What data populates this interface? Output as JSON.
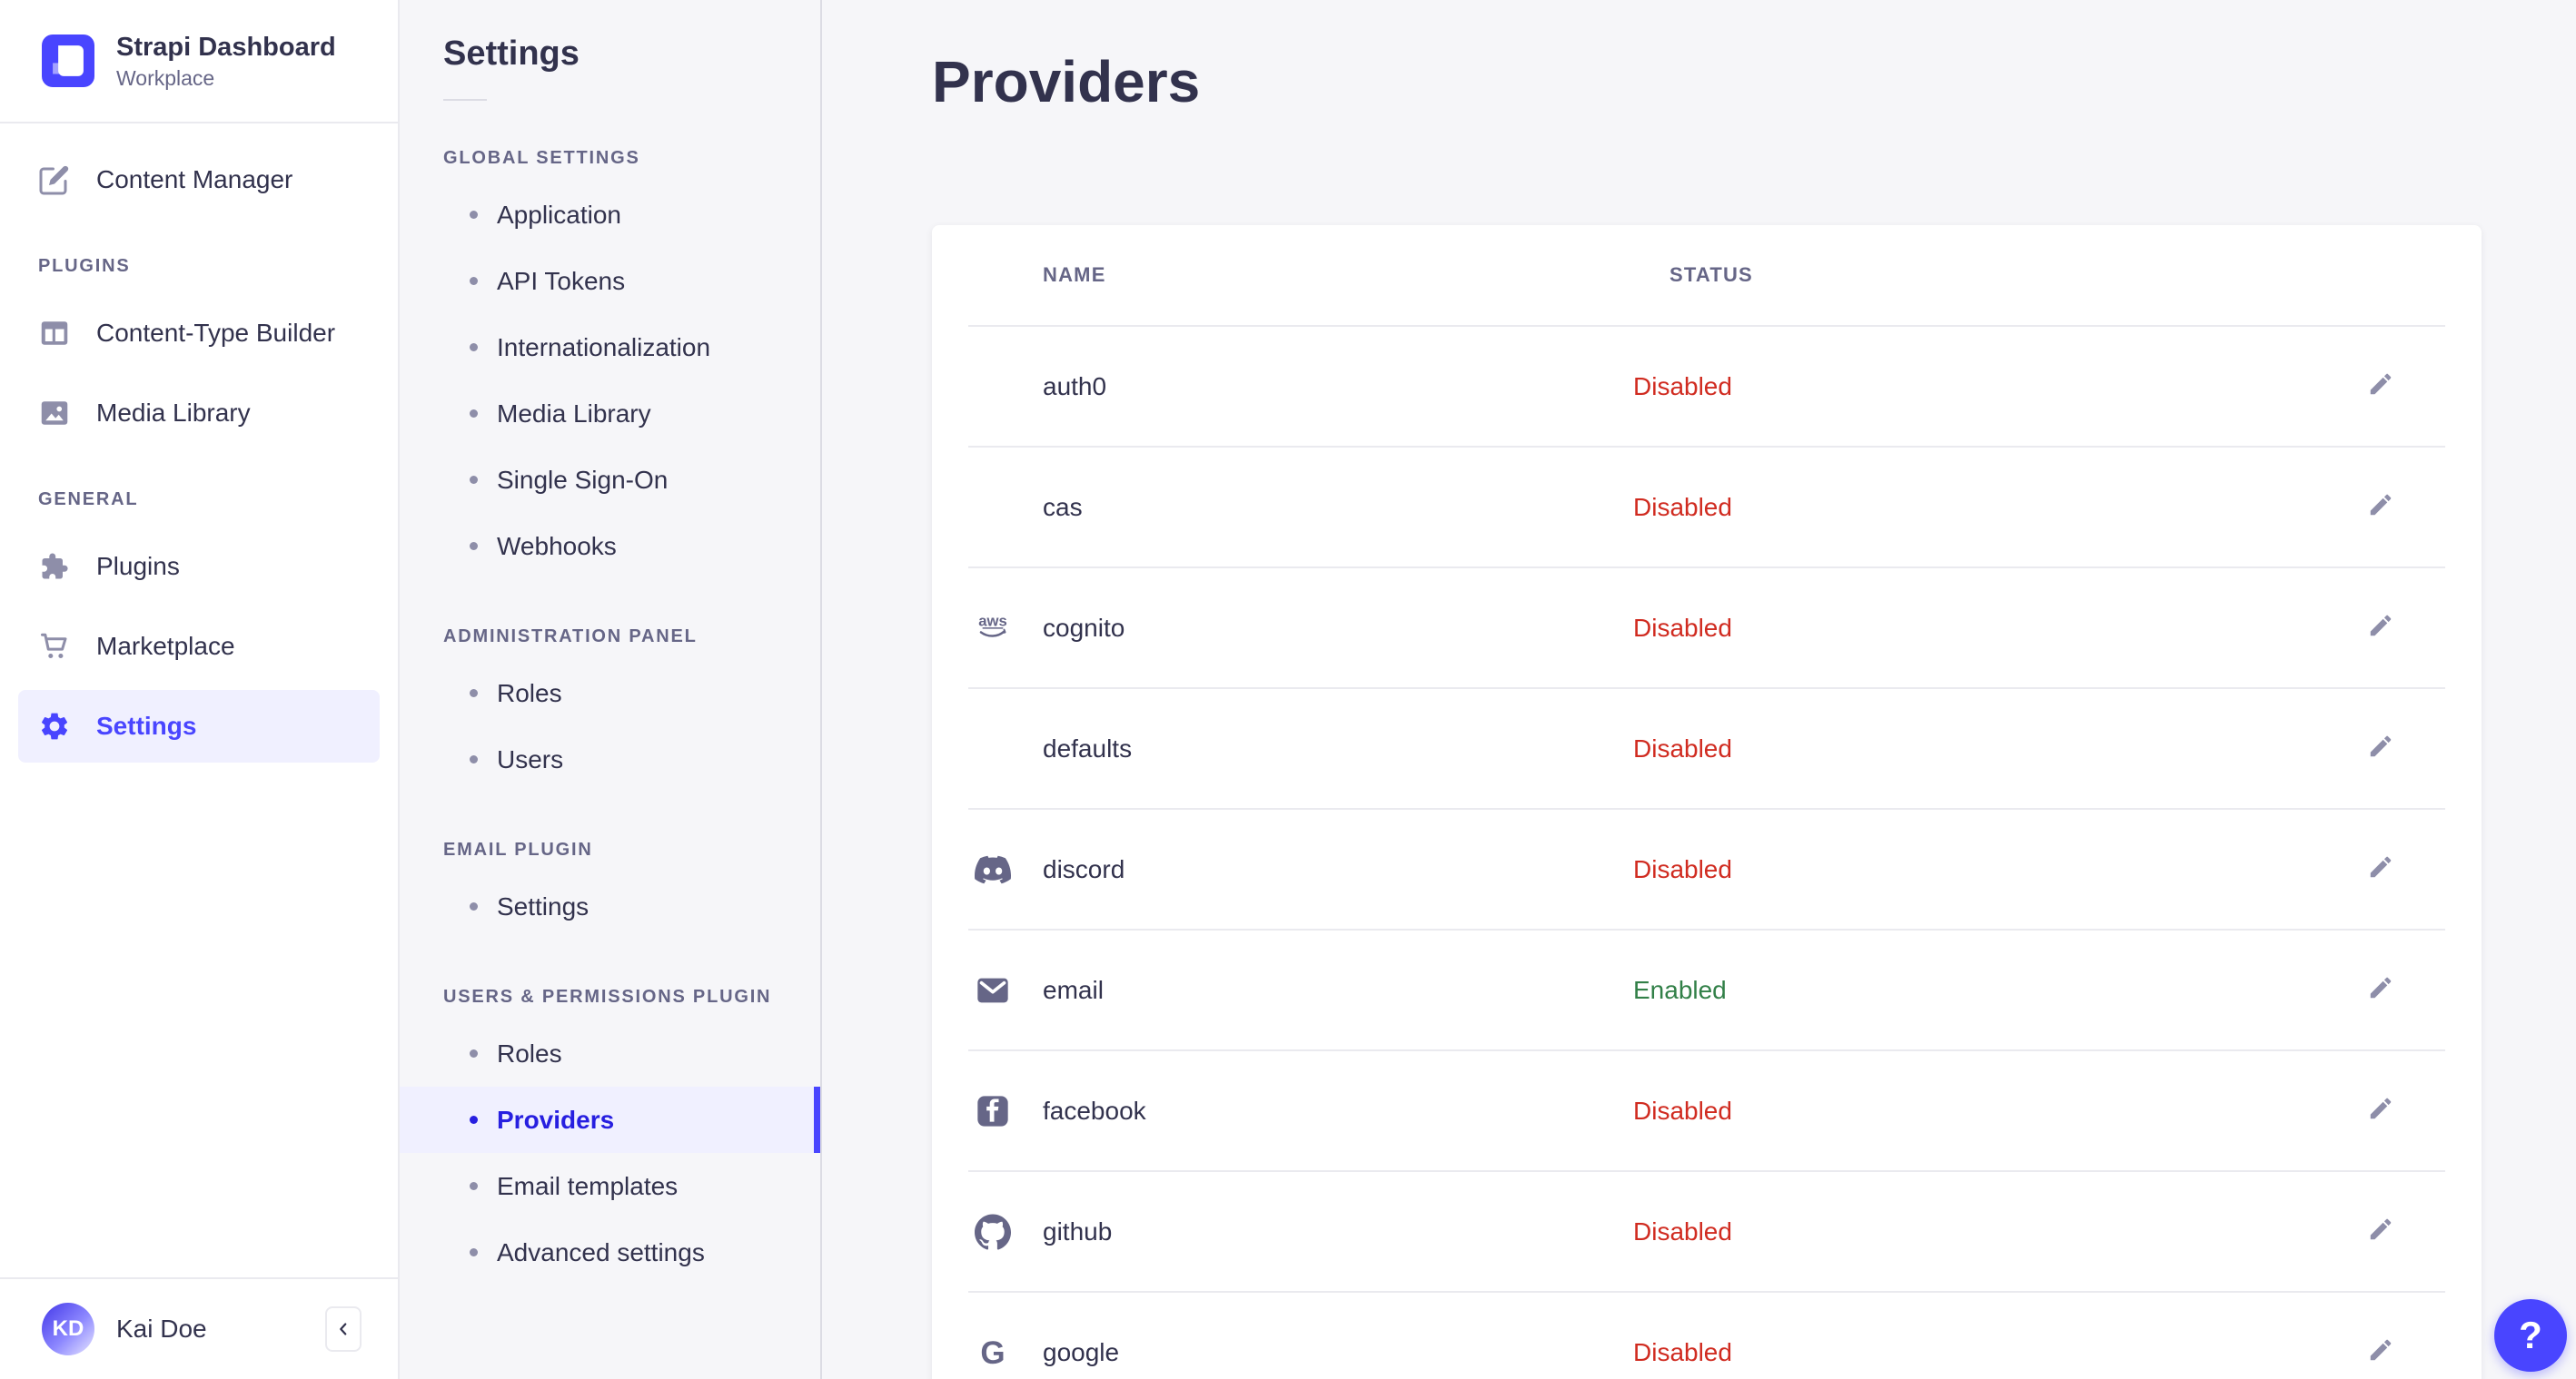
{
  "brand": {
    "title": "Strapi Dashboard",
    "subtitle": "Workplace"
  },
  "left_nav": {
    "primary": [
      {
        "label": "Content Manager",
        "icon": "pen-icon"
      }
    ],
    "sections": [
      {
        "label": "PLUGINS",
        "items": [
          {
            "label": "Content-Type Builder",
            "icon": "content-type-builder-icon"
          },
          {
            "label": "Media Library",
            "icon": "media-library-icon"
          }
        ]
      },
      {
        "label": "GENERAL",
        "items": [
          {
            "label": "Plugins",
            "icon": "plugins-icon"
          },
          {
            "label": "Marketplace",
            "icon": "marketplace-icon"
          },
          {
            "label": "Settings",
            "icon": "settings-icon",
            "active": true
          }
        ]
      }
    ],
    "user": {
      "initials": "KD",
      "name": "Kai Doe"
    }
  },
  "settings_nav": {
    "title": "Settings",
    "sections": [
      {
        "label": "GLOBAL SETTINGS",
        "items": [
          "Application",
          "API Tokens",
          "Internationalization",
          "Media Library",
          "Single Sign-On",
          "Webhooks"
        ]
      },
      {
        "label": "ADMINISTRATION PANEL",
        "items": [
          "Roles",
          "Users"
        ]
      },
      {
        "label": "EMAIL PLUGIN",
        "items": [
          "Settings"
        ]
      },
      {
        "label": "USERS & PERMISSIONS PLUGIN",
        "items": [
          "Roles",
          "Providers",
          "Email templates",
          "Advanced settings"
        ],
        "active": "Providers"
      }
    ]
  },
  "main": {
    "title": "Providers",
    "table": {
      "columns": [
        "NAME",
        "STATUS"
      ],
      "rows": [
        {
          "name": "auth0",
          "status": "Disabled",
          "icon": null
        },
        {
          "name": "cas",
          "status": "Disabled",
          "icon": null
        },
        {
          "name": "cognito",
          "status": "Disabled",
          "icon": "aws-icon"
        },
        {
          "name": "defaults",
          "status": "Disabled",
          "icon": null
        },
        {
          "name": "discord",
          "status": "Disabled",
          "icon": "discord-icon"
        },
        {
          "name": "email",
          "status": "Enabled",
          "icon": "email-icon"
        },
        {
          "name": "facebook",
          "status": "Disabled",
          "icon": "facebook-icon"
        },
        {
          "name": "github",
          "status": "Disabled",
          "icon": "github-icon"
        },
        {
          "name": "google",
          "status": "Disabled",
          "icon": "google-icon"
        }
      ]
    },
    "help_label": "?"
  },
  "colors": {
    "primary": "#4945ff",
    "primary_bg": "#f0f0ff",
    "active_link": "#271fe0",
    "danger": "#d02b20",
    "success": "#328048",
    "text": "#32324d",
    "muted": "#666687",
    "border": "#eaeaef",
    "background": "#f6f6f9"
  }
}
